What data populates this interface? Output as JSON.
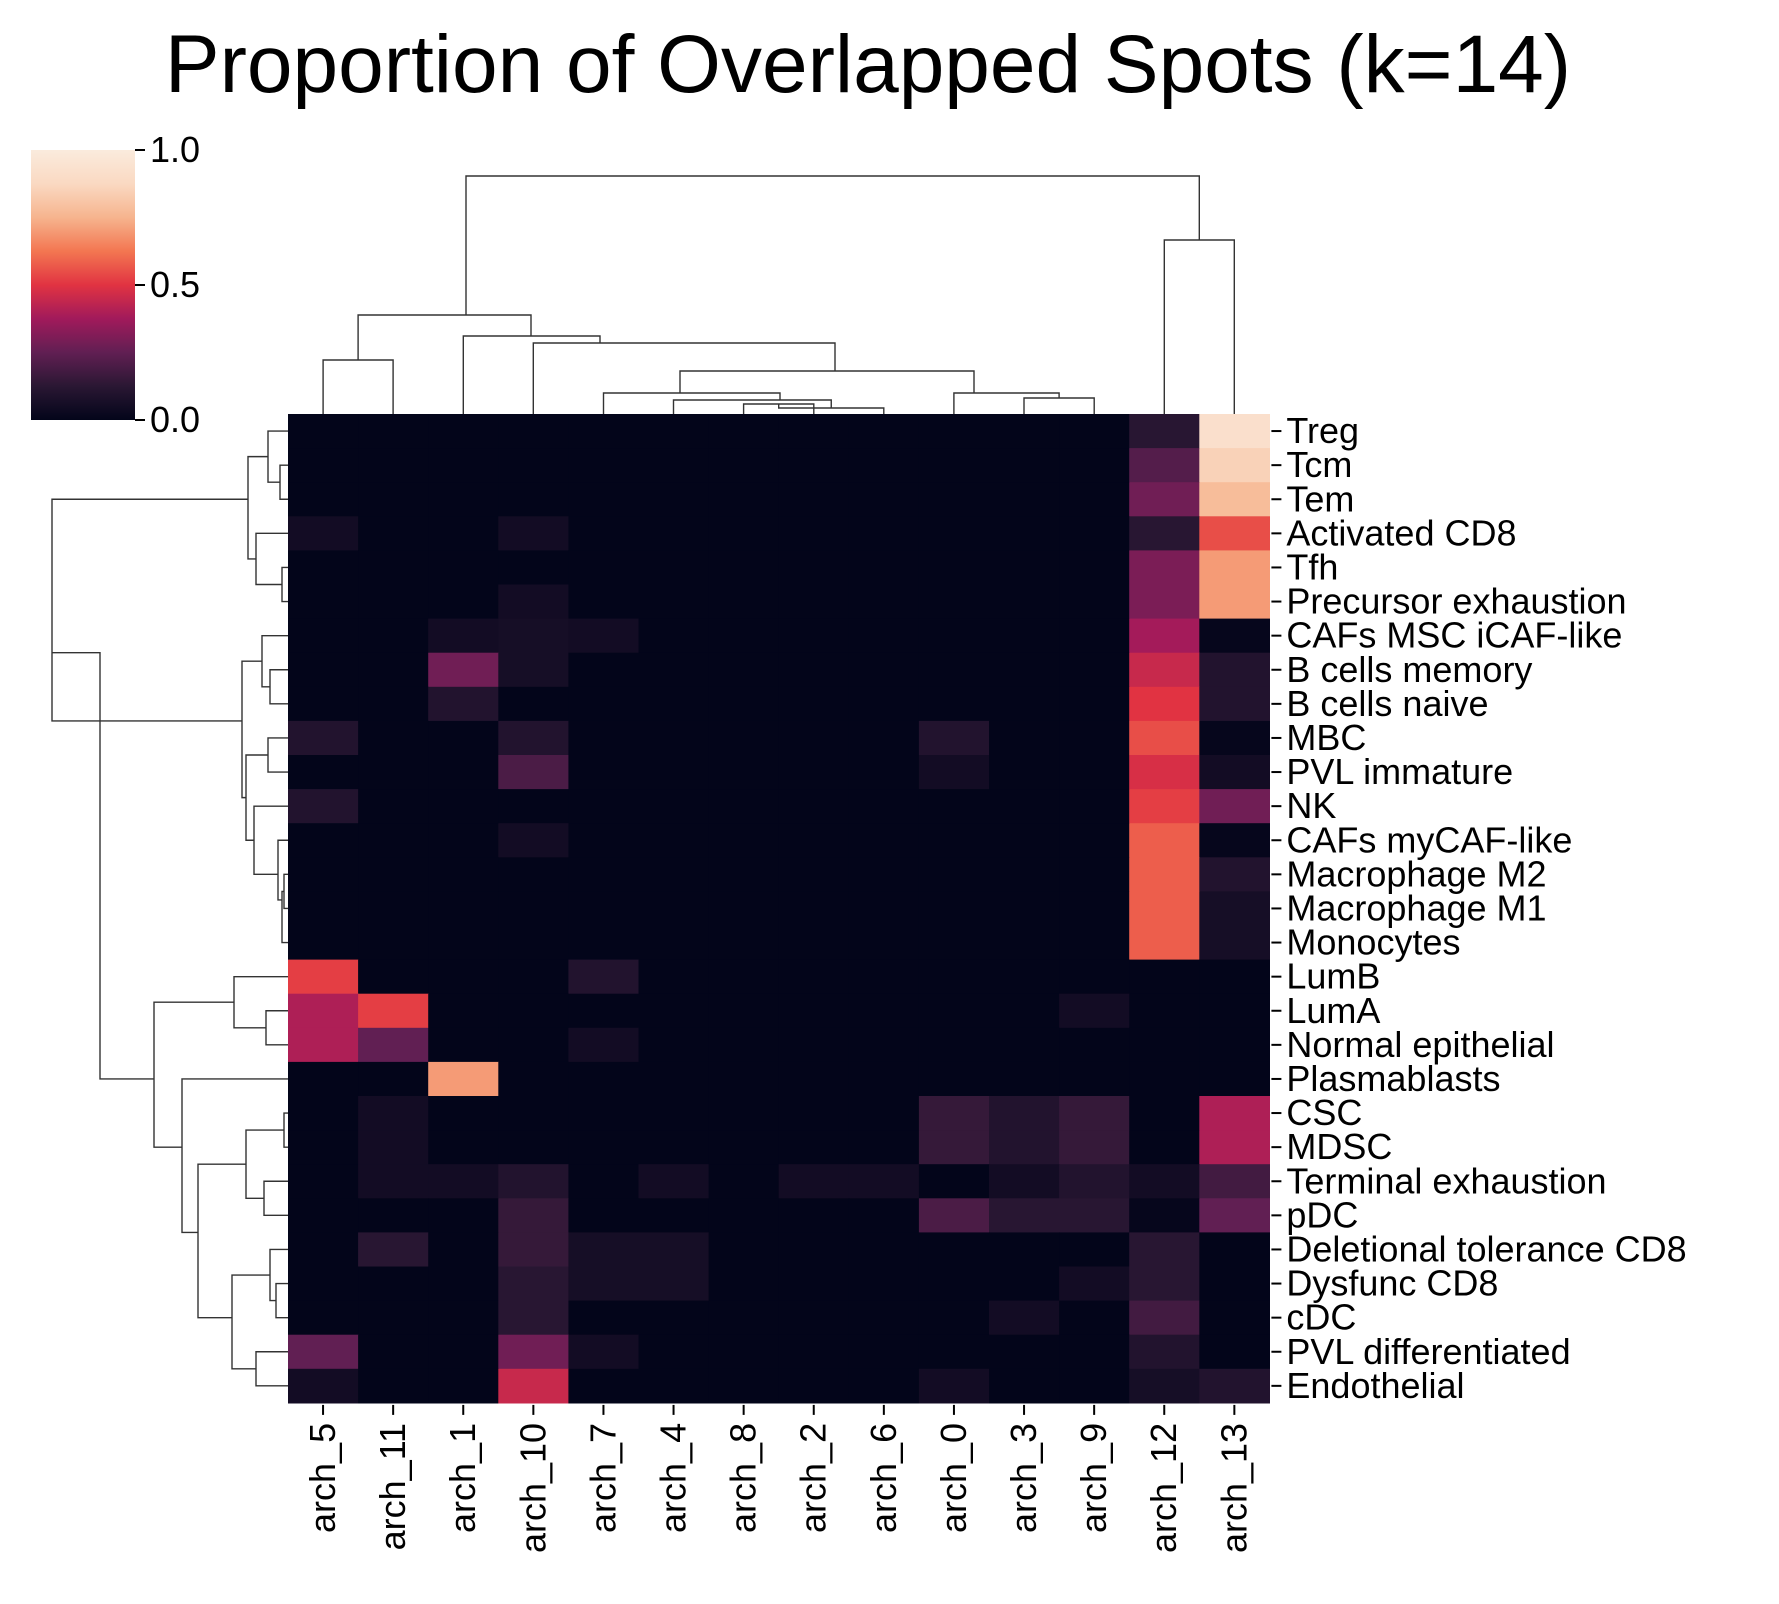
{
  "chart_data": {
    "type": "heatmap",
    "title": "Proportion of Overlapped Spots (k=14)",
    "columns": [
      "arch_5",
      "arch_11",
      "arch_1",
      "arch_10",
      "arch_7",
      "arch_4",
      "arch_8",
      "arch_2",
      "arch_6",
      "arch_0",
      "arch_3",
      "arch_9",
      "arch_12",
      "arch_13"
    ],
    "rows": [
      "Treg",
      "Tcm",
      "Tem",
      "Activated CD8",
      "Tfh",
      "Precursor exhaustion",
      "CAFs MSC iCAF-like",
      "B cells memory",
      "B cells naive",
      "MBC",
      "PVL immature",
      "NK",
      "CAFs myCAF-like",
      "Macrophage M2",
      "Macrophage M1",
      "Monocytes",
      "LumB",
      "LumA",
      "Normal epithelial",
      "Plasmablasts",
      "CSC",
      "MDSC",
      "Terminal exhaustion",
      "pDC",
      "Deletional tolerance CD8",
      "Dysfunc CD8",
      "cDC",
      "PVL differentiated",
      "Endothelial"
    ],
    "values": [
      [
        0,
        0,
        0,
        0,
        0,
        0,
        0,
        0,
        0,
        0,
        0,
        0,
        0.12,
        0.92
      ],
      [
        0,
        0,
        0,
        0,
        0,
        0,
        0,
        0,
        0,
        0,
        0,
        0,
        0.22,
        0.85
      ],
      [
        0,
        0,
        0,
        0,
        0,
        0,
        0,
        0,
        0,
        0,
        0,
        0,
        0.28,
        0.78
      ],
      [
        0.05,
        0,
        0,
        0.05,
        0,
        0,
        0,
        0,
        0,
        0,
        0,
        0,
        0.12,
        0.55
      ],
      [
        0,
        0,
        0,
        0,
        0,
        0,
        0,
        0,
        0,
        0,
        0,
        0,
        0.3,
        0.7
      ],
      [
        0,
        0,
        0,
        0.05,
        0,
        0,
        0,
        0,
        0,
        0,
        0,
        0,
        0.3,
        0.7
      ],
      [
        0,
        0,
        0.05,
        0.06,
        0.05,
        0,
        0,
        0,
        0,
        0,
        0,
        0,
        0.38,
        0.01
      ],
      [
        0,
        0,
        0.28,
        0.06,
        0,
        0,
        0,
        0,
        0,
        0,
        0,
        0,
        0.45,
        0.1
      ],
      [
        0,
        0,
        0.1,
        0,
        0,
        0,
        0,
        0,
        0,
        0,
        0,
        0,
        0.5,
        0.1
      ],
      [
        0.1,
        0,
        0,
        0.1,
        0,
        0,
        0,
        0,
        0,
        0.1,
        0,
        0,
        0.55,
        0.01
      ],
      [
        0,
        0,
        0,
        0.2,
        0,
        0,
        0,
        0,
        0,
        0.05,
        0,
        0,
        0.48,
        0.05
      ],
      [
        0.1,
        0,
        0,
        0,
        0,
        0,
        0,
        0,
        0,
        0,
        0,
        0,
        0.52,
        0.28
      ],
      [
        0,
        0,
        0,
        0.05,
        0,
        0,
        0,
        0,
        0,
        0,
        0,
        0,
        0.58,
        0.01
      ],
      [
        0,
        0,
        0,
        0,
        0,
        0,
        0,
        0,
        0,
        0,
        0,
        0,
        0.58,
        0.1
      ],
      [
        0,
        0,
        0,
        0,
        0,
        0,
        0,
        0,
        0,
        0,
        0,
        0,
        0.58,
        0.06
      ],
      [
        0,
        0,
        0,
        0,
        0,
        0,
        0,
        0,
        0,
        0,
        0,
        0,
        0.58,
        0.06
      ],
      [
        0.52,
        0,
        0,
        0,
        0.1,
        0,
        0,
        0,
        0,
        0,
        0,
        0,
        0,
        0
      ],
      [
        0.4,
        0.52,
        0,
        0,
        0,
        0,
        0,
        0,
        0,
        0,
        0,
        0.05,
        0,
        0
      ],
      [
        0.4,
        0.25,
        0,
        0,
        0.05,
        0,
        0,
        0,
        0,
        0,
        0,
        0,
        0,
        0
      ],
      [
        0,
        0,
        0.7,
        0,
        0,
        0,
        0,
        0,
        0,
        0,
        0,
        0,
        0,
        0
      ],
      [
        0,
        0.05,
        0,
        0,
        0,
        0,
        0,
        0,
        0,
        0.15,
        0.1,
        0.15,
        0,
        0.4
      ],
      [
        0,
        0.05,
        0,
        0,
        0,
        0,
        0,
        0,
        0,
        0.15,
        0.1,
        0.15,
        0,
        0.4
      ],
      [
        0,
        0.05,
        0.05,
        0.1,
        0,
        0.05,
        0,
        0.05,
        0.05,
        0,
        0.05,
        0.1,
        0.05,
        0.18
      ],
      [
        0,
        0,
        0,
        0.15,
        0,
        0,
        0,
        0,
        0,
        0.2,
        0.12,
        0.12,
        0.01,
        0.25
      ],
      [
        0,
        0.12,
        0,
        0.15,
        0.06,
        0.06,
        0,
        0,
        0,
        0,
        0,
        0,
        0.12,
        0
      ],
      [
        0,
        0,
        0,
        0.12,
        0.06,
        0.06,
        0,
        0,
        0,
        0,
        0,
        0.05,
        0.12,
        0
      ],
      [
        0,
        0,
        0,
        0.12,
        0,
        0,
        0,
        0,
        0,
        0,
        0.05,
        0,
        0.18,
        0
      ],
      [
        0.25,
        0,
        0,
        0.28,
        0.05,
        0,
        0,
        0,
        0,
        0,
        0,
        0,
        0.1,
        0
      ],
      [
        0.05,
        0,
        0,
        0.45,
        0,
        0,
        0,
        0,
        0,
        0.05,
        0,
        0,
        0.06,
        0.1
      ]
    ],
    "vmin": 0,
    "vmax": 1,
    "colorbar": {
      "ticks": [
        "0.0",
        "0.5",
        "1.0"
      ],
      "colormap": "rocket"
    },
    "col_dendrogram": true,
    "row_dendrogram": true
  }
}
